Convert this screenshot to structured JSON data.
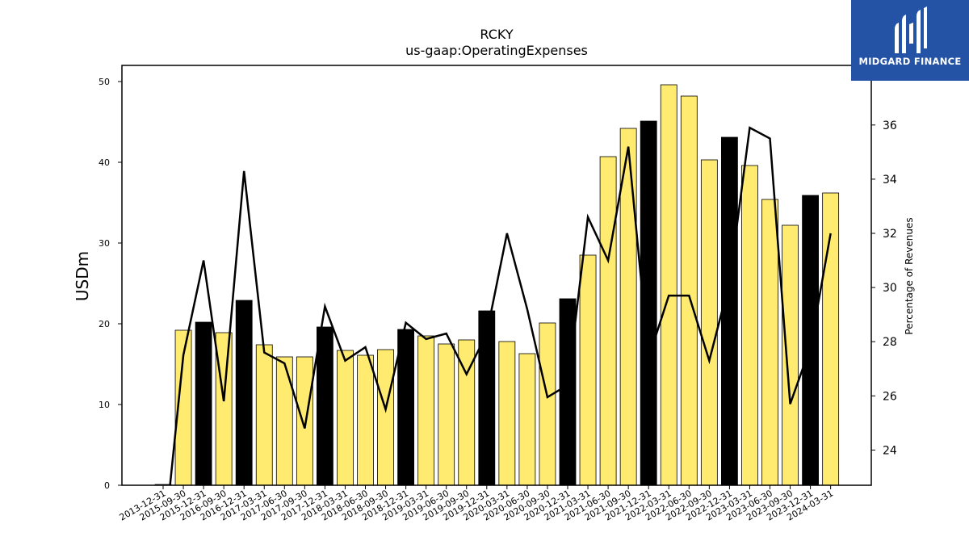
{
  "chart_data": {
    "type": "bar",
    "title": "RCKY",
    "subtitle": "us-gaap:OperatingExpenses",
    "ylabel": "USDm",
    "y2label": "Percentage of Revenues",
    "ylim": [
      0,
      52
    ],
    "y2lim": [
      22.7,
      38.2
    ],
    "yticks": [
      0,
      10,
      20,
      30,
      40,
      50
    ],
    "y2ticks": [
      24,
      26,
      28,
      30,
      32,
      34,
      36
    ],
    "categories": [
      "2013-12-31",
      "2015-09-30",
      "2015-12-31",
      "2016-09-30",
      "2016-12-31",
      "2017-03-31",
      "2017-06-30",
      "2017-09-30",
      "2017-12-31",
      "2018-03-31",
      "2018-06-30",
      "2018-09-30",
      "2018-12-31",
      "2019-03-31",
      "2019-06-30",
      "2019-09-30",
      "2019-12-31",
      "2020-03-31",
      "2020-06-30",
      "2020-09-30",
      "2020-12-31",
      "2021-03-31",
      "2021-06-30",
      "2021-09-30",
      "2021-12-31",
      "2022-03-31",
      "2022-06-30",
      "2022-09-30",
      "2022-12-31",
      "2023-03-31",
      "2023-06-30",
      "2023-09-30",
      "2023-12-31",
      "2024-03-31"
    ],
    "series": [
      {
        "type": "bar",
        "values": [
          0.1,
          19.2,
          20.2,
          18.9,
          22.9,
          17.4,
          15.9,
          15.9,
          19.6,
          16.7,
          16.1,
          16.8,
          19.3,
          18.5,
          17.5,
          18.0,
          21.6,
          17.8,
          16.3,
          20.1,
          23.1,
          28.5,
          40.7,
          44.2,
          45.1,
          49.6,
          48.2,
          40.3,
          43.1,
          39.6,
          35.4,
          32.2,
          35.9,
          36.2
        ],
        "colors": [
          "#000000",
          "#ffeb70",
          "#000000",
          "#ffeb70",
          "#000000",
          "#ffeb70",
          "#ffeb70",
          "#ffeb70",
          "#000000",
          "#ffeb70",
          "#ffeb70",
          "#ffeb70",
          "#000000",
          "#ffeb70",
          "#ffeb70",
          "#ffeb70",
          "#000000",
          "#ffeb70",
          "#ffeb70",
          "#ffeb70",
          "#000000",
          "#ffeb70",
          "#ffeb70",
          "#ffeb70",
          "#000000",
          "#ffeb70",
          "#ffeb70",
          "#ffeb70",
          "#000000",
          "#ffeb70",
          "#ffeb70",
          "#ffeb70",
          "#000000",
          "#ffeb70"
        ]
      },
      {
        "type": "line",
        "axis": "right",
        "values": [
          20.2,
          27.5,
          31.0,
          25.8,
          34.3,
          27.6,
          27.2,
          24.8,
          29.3,
          27.3,
          27.8,
          25.5,
          28.7,
          28.1,
          28.3,
          26.8,
          28.3,
          32.0,
          29.2,
          25.95,
          26.4,
          32.6,
          31.0,
          35.2,
          27.4,
          29.7,
          29.7,
          27.3,
          30.2,
          35.9,
          35.5,
          25.7,
          27.8,
          32.0
        ],
        "color": "#000000"
      }
    ],
    "grid": false,
    "legend": "none"
  },
  "logo": {
    "text": "MIDGARD FINANCE",
    "background": "#2453a6"
  }
}
